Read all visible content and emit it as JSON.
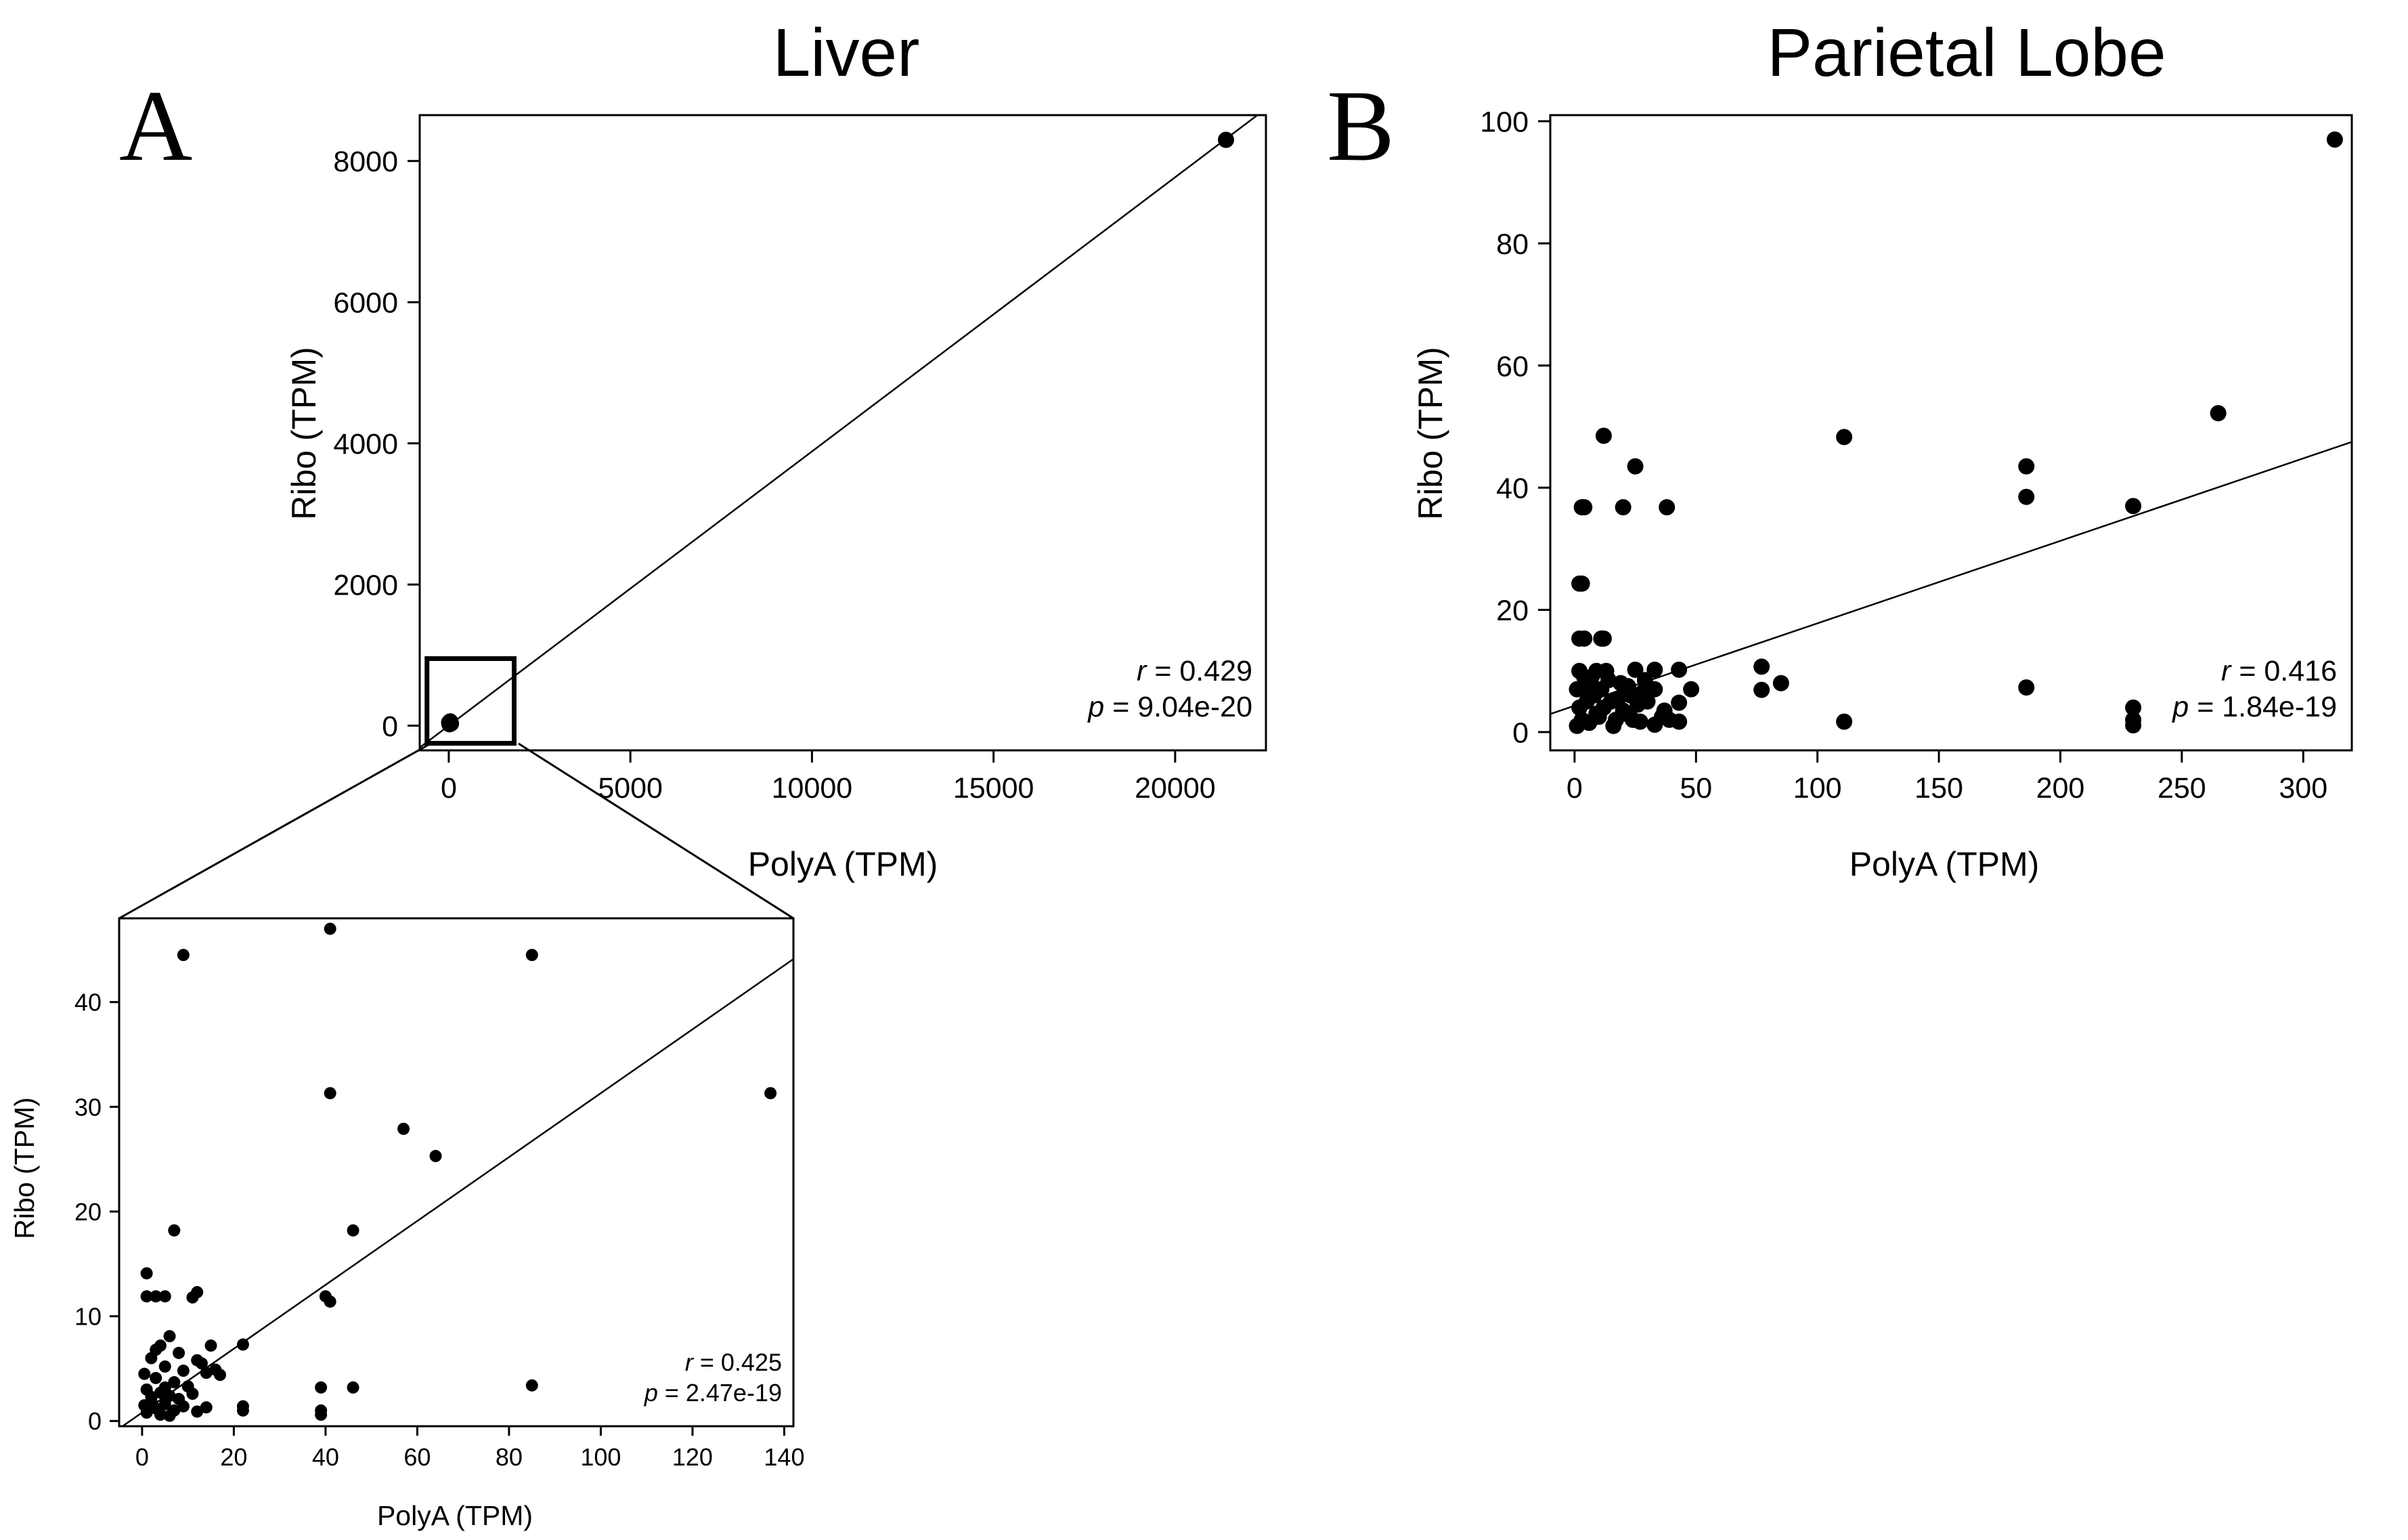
{
  "figure": {
    "panels": [
      {
        "letter": "A",
        "title": "Liver"
      },
      {
        "letter": "B",
        "title": "Parietal Lobe"
      }
    ]
  },
  "chart_data": [
    {
      "id": "liver-main",
      "type": "scatter",
      "title": "Liver",
      "panel_label": "A",
      "xlabel": "PolyA (TPM)",
      "ylabel": "Ribo (TPM)",
      "xlim": [
        -800,
        22500
      ],
      "ylim": [
        -350,
        8650
      ],
      "xticks": [
        0,
        5000,
        10000,
        15000,
        20000
      ],
      "yticks": [
        0,
        2000,
        4000,
        6000,
        8000
      ],
      "grid": false,
      "points": [
        [
          21400,
          8300
        ],
        [
          20,
          20
        ],
        [
          40,
          60
        ],
        [
          60,
          30
        ],
        [
          10,
          45
        ]
      ],
      "fit_line": {
        "slope": 0.3885,
        "intercept": 0
      },
      "zoom_box": {
        "x": [
          -600,
          1800
        ],
        "y": [
          -250,
          950
        ]
      },
      "stats": {
        "r_label": "r",
        "r_value": "= 0.429",
        "p_label": "p",
        "p_value": "= 9.04e-20"
      }
    },
    {
      "id": "liver-inset",
      "type": "scatter",
      "title": "",
      "xlabel": "PolyA (TPM)",
      "ylabel": "Ribo (TPM)",
      "xlim": [
        -5,
        142
      ],
      "ylim": [
        -0.5,
        48
      ],
      "xticks": [
        0,
        20,
        40,
        60,
        80,
        100,
        120,
        140
      ],
      "yticks": [
        0,
        10,
        20,
        30,
        40
      ],
      "grid": false,
      "points": [
        [
          9,
          44.5
        ],
        [
          41,
          47
        ],
        [
          85,
          44.5
        ],
        [
          41,
          31.3
        ],
        [
          137,
          31.3
        ],
        [
          57,
          27.9
        ],
        [
          64,
          25.3
        ],
        [
          7,
          18.2
        ],
        [
          46,
          18.2
        ],
        [
          1,
          14.1
        ],
        [
          1,
          11.9
        ],
        [
          3,
          11.9
        ],
        [
          5,
          11.9
        ],
        [
          11,
          11.8
        ],
        [
          12,
          12.3
        ],
        [
          40,
          11.9
        ],
        [
          41,
          11.4
        ],
        [
          22,
          7.3
        ],
        [
          15,
          7.2
        ],
        [
          13,
          5.5
        ],
        [
          14,
          4.6
        ],
        [
          16,
          4.9
        ],
        [
          17,
          4.4
        ],
        [
          39,
          3.2
        ],
        [
          46,
          3.2
        ],
        [
          85,
          3.4
        ],
        [
          22,
          1.4
        ],
        [
          22,
          1.0
        ],
        [
          39,
          1.0
        ],
        [
          39,
          0.6
        ],
        [
          12,
          0.9
        ],
        [
          14,
          1.3
        ],
        [
          6,
          8.1
        ],
        [
          4,
          7.2
        ],
        [
          8,
          6.5
        ],
        [
          2,
          6.0
        ],
        [
          5,
          5.2
        ],
        [
          9,
          4.8
        ],
        [
          3,
          4.1
        ],
        [
          7,
          3.7
        ],
        [
          10,
          3.3
        ],
        [
          1,
          3.0
        ],
        [
          4,
          2.7
        ],
        [
          6,
          2.4
        ],
        [
          8,
          2.1
        ],
        [
          2,
          1.9
        ],
        [
          5,
          1.6
        ],
        [
          9,
          1.4
        ],
        [
          3,
          1.2
        ],
        [
          7,
          1.0
        ],
        [
          1,
          0.8
        ],
        [
          4,
          0.6
        ],
        [
          6,
          0.5
        ],
        [
          2,
          2.3
        ],
        [
          11,
          2.6
        ],
        [
          12,
          5.8
        ],
        [
          3,
          6.8
        ],
        [
          5,
          3.2
        ],
        [
          0.5,
          1.5
        ],
        [
          0.5,
          4.5
        ]
      ],
      "fit_line": {
        "slope": 0.305,
        "intercept": 0.8
      },
      "stats": {
        "r_label": "r",
        "r_value": "= 0.425",
        "p_label": "p",
        "p_value": "= 2.47e-19"
      }
    },
    {
      "id": "parietal-main",
      "type": "scatter",
      "title": "Parietal Lobe",
      "panel_label": "B",
      "xlabel": "PolyA (TPM)",
      "ylabel": "Ribo (TPM)",
      "xlim": [
        -10,
        320
      ],
      "ylim": [
        -3,
        101
      ],
      "xticks": [
        0,
        50,
        100,
        150,
        200,
        250,
        300
      ],
      "yticks": [
        0,
        20,
        40,
        60,
        80,
        100
      ],
      "grid": false,
      "points": [
        [
          313,
          97
        ],
        [
          12,
          48.5
        ],
        [
          111,
          48.3
        ],
        [
          265,
          52.2
        ],
        [
          25,
          43.5
        ],
        [
          186,
          43.5
        ],
        [
          186,
          38.5
        ],
        [
          3,
          36.8
        ],
        [
          4,
          36.8
        ],
        [
          20,
          36.8
        ],
        [
          38,
          36.8
        ],
        [
          230,
          37
        ],
        [
          2,
          24.3
        ],
        [
          3,
          24.3
        ],
        [
          2,
          15.3
        ],
        [
          4,
          15.3
        ],
        [
          11,
          15.3
        ],
        [
          12,
          15.3
        ],
        [
          77,
          10.7
        ],
        [
          85,
          8.0
        ],
        [
          77,
          6.9
        ],
        [
          186,
          7.3
        ],
        [
          230,
          4.0
        ],
        [
          230,
          2.0
        ],
        [
          230,
          1.1
        ],
        [
          111,
          1.7
        ],
        [
          48,
          7.0
        ],
        [
          43,
          10.2
        ],
        [
          43,
          4.8
        ],
        [
          43,
          1.7
        ],
        [
          37,
          3.5
        ],
        [
          33,
          10.2
        ],
        [
          33,
          7.0
        ],
        [
          33,
          1.2
        ],
        [
          30,
          5.0
        ],
        [
          27,
          1.7
        ],
        [
          25,
          10.2
        ],
        [
          23,
          6.0
        ],
        [
          21,
          3.0
        ],
        [
          19,
          8.0
        ],
        [
          17,
          2.0
        ],
        [
          15,
          5.0
        ],
        [
          13,
          10.0
        ],
        [
          11,
          7.0
        ],
        [
          9,
          3.0
        ],
        [
          7,
          9.0
        ],
        [
          5,
          5.0
        ],
        [
          3,
          2.0
        ],
        [
          1,
          7.0
        ],
        [
          2,
          4.0
        ],
        [
          4,
          9.0
        ],
        [
          6,
          1.5
        ],
        [
          8,
          6.0
        ],
        [
          10,
          2.5
        ],
        [
          12,
          4.0
        ],
        [
          14,
          8.5
        ],
        [
          16,
          1.0
        ],
        [
          18,
          5.5
        ],
        [
          20,
          3.5
        ],
        [
          22,
          7.5
        ],
        [
          24,
          2.0
        ],
        [
          26,
          4.5
        ],
        [
          28,
          6.5
        ],
        [
          1,
          1.0
        ],
        [
          2,
          10.0
        ],
        [
          5,
          7.5
        ],
        [
          9,
          10.0
        ],
        [
          36,
          2.5
        ],
        [
          39,
          2.0
        ],
        [
          29,
          8.5
        ]
      ],
      "fit_line": {
        "slope": 0.135,
        "intercept": 4.3
      },
      "stats": {
        "r_label": "r",
        "r_value": "= 0.416",
        "p_label": "p",
        "p_value": "= 1.84e-19"
      }
    }
  ]
}
